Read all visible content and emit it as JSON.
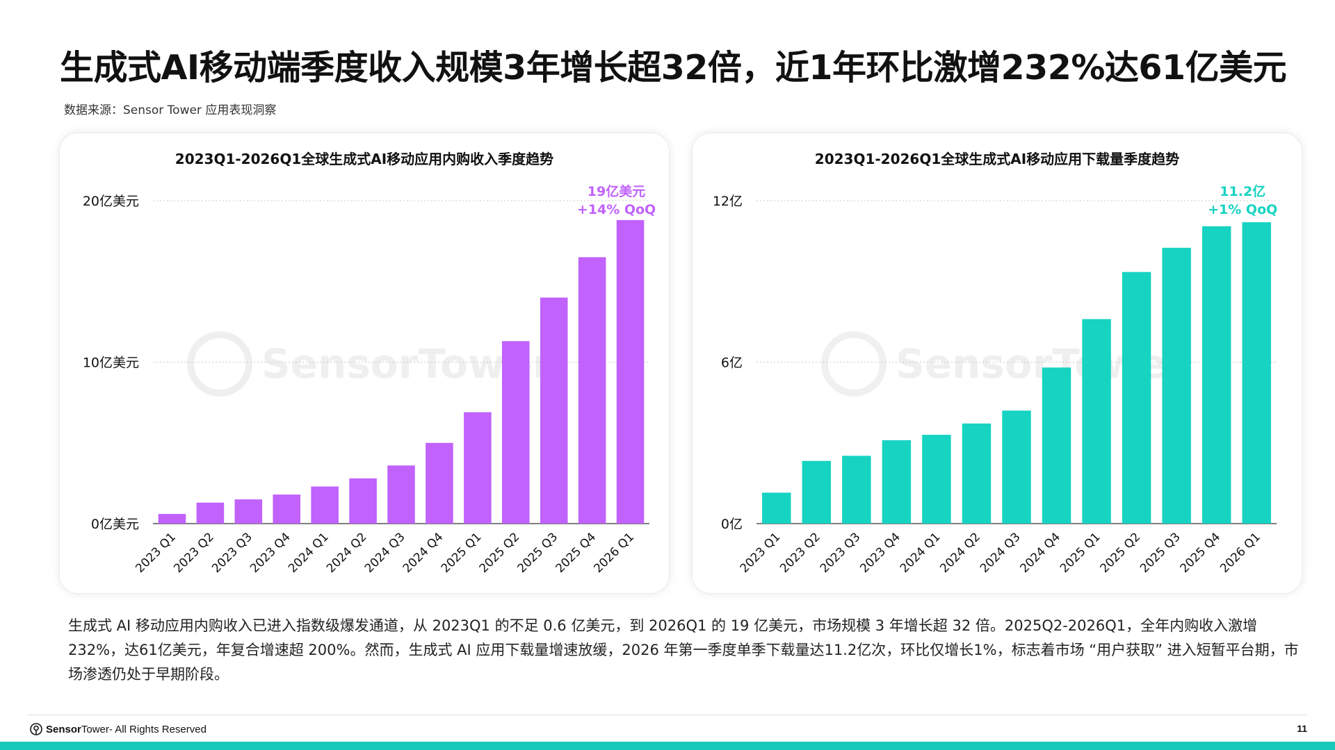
{
  "page": {
    "title": "生成式AI移动端季度收入规模3年增长超32倍，近1年环比激增232%达61亿美元",
    "source": "数据来源：Sensor Tower 应用表现洞察",
    "summary": "生成式 AI 移动应用内购收入已进入指数级爆发通道，从 2023Q1 的不足 0.6 亿美元，到 2026Q1 的 19 亿美元，市场规模 3 年增长超 32 倍。2025Q2-2026Q1，全年内购收入激增232%，达61亿美元，年复合增速超 200%。然而，生成式 AI 应用下载量增速放缓，2026 年第一季度单季下载量达11.2亿次，环比仅增长1%，标志着市场 “用户获取” 进入短暂平台期，市场渗透仍处于早期阶段。",
    "footer_brand_bold": "Sensor",
    "footer_brand_regular": "Tower",
    "footer_rights": " - All Rights Reserved",
    "page_number": "11",
    "watermark": "SensorTower",
    "accent_color": "#16c9b8"
  },
  "chart_data": [
    {
      "type": "bar",
      "title": "2023Q1-2026Q1全球生成式AI移动应用内购收入季度趋势",
      "categories": [
        "2023 Q1",
        "2023 Q2",
        "2023 Q3",
        "2023 Q4",
        "2024 Q1",
        "2024 Q2",
        "2024 Q3",
        "2024 Q4",
        "2025 Q1",
        "2025 Q2",
        "2025 Q3",
        "2025 Q4",
        "2026 Q1"
      ],
      "values": [
        0.6,
        1.3,
        1.5,
        1.8,
        2.3,
        2.8,
        3.6,
        5.0,
        6.9,
        11.3,
        14.0,
        16.5,
        18.8
      ],
      "ylim": [
        0,
        20
      ],
      "yticks": [
        0,
        10,
        20
      ],
      "ytick_labels": [
        "0亿美元",
        "10亿美元",
        "20亿美元"
      ],
      "color": "#c062fb",
      "annotation": [
        "19亿美元",
        "+14% QoQ"
      ],
      "grid": true,
      "legend": "none"
    },
    {
      "type": "bar",
      "title": "2023Q1-2026Q1全球生成式AI移动应用下载量季度趋势",
      "categories": [
        "2023 Q1",
        "2023 Q2",
        "2023 Q3",
        "2023 Q4",
        "2024 Q1",
        "2024 Q2",
        "2024 Q3",
        "2024 Q4",
        "2025 Q1",
        "2025 Q2",
        "2025 Q3",
        "2025 Q4",
        "2026 Q1"
      ],
      "values": [
        1.15,
        2.33,
        2.52,
        3.1,
        3.3,
        3.72,
        4.2,
        5.8,
        7.6,
        9.35,
        10.25,
        11.05,
        11.2
      ],
      "ylim": [
        0,
        12
      ],
      "yticks": [
        0,
        6,
        12
      ],
      "ytick_labels": [
        "0亿",
        "6亿",
        "12亿"
      ],
      "color": "#16d3c2",
      "annotation": [
        "11.2亿",
        "+1% QoQ"
      ],
      "grid": true,
      "legend": "none"
    }
  ]
}
